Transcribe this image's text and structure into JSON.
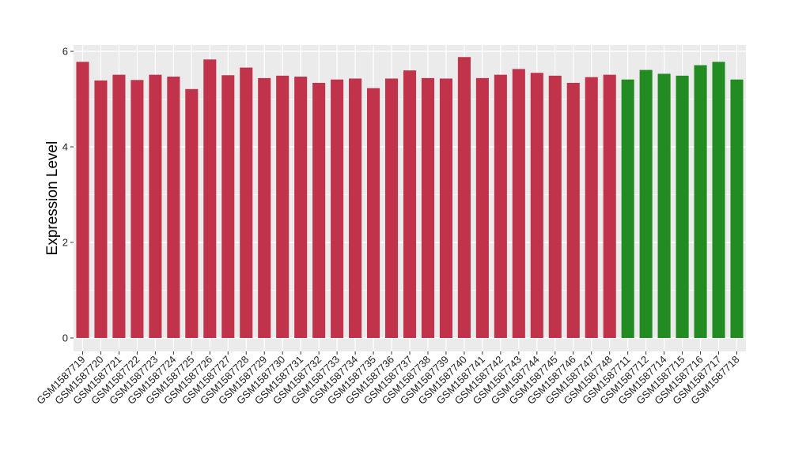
{
  "chart_data": {
    "type": "bar",
    "title": "",
    "xlabel": "",
    "ylabel": "Expression Level",
    "ylim": [
      0,
      6.15
    ],
    "yticks": [
      0,
      2,
      4,
      6
    ],
    "grid": true,
    "colors": {
      "group_a": "#c0334b",
      "group_b": "#228b22",
      "panel_bg": "#ebebeb",
      "grid": "#ffffff"
    },
    "categories": [
      "GSM1587719",
      "GSM1587720",
      "GSM1587721",
      "GSM1587722",
      "GSM1587723",
      "GSM1587724",
      "GSM1587725",
      "GSM1587726",
      "GSM1587727",
      "GSM1587728",
      "GSM1587729",
      "GSM1587730",
      "GSM1587731",
      "GSM1587732",
      "GSM1587733",
      "GSM1587734",
      "GSM1587735",
      "GSM1587736",
      "GSM1587737",
      "GSM1587738",
      "GSM1587739",
      "GSM1587740",
      "GSM1587741",
      "GSM1587742",
      "GSM1587743",
      "GSM1587744",
      "GSM1587745",
      "GSM1587746",
      "GSM1587747",
      "GSM1587748",
      "GSM1587711",
      "GSM1587712",
      "GSM1587714",
      "GSM1587715",
      "GSM1587716",
      "GSM1587717",
      "GSM1587718"
    ],
    "values": [
      5.78,
      5.39,
      5.51,
      5.4,
      5.51,
      5.47,
      5.21,
      5.83,
      5.5,
      5.66,
      5.44,
      5.49,
      5.47,
      5.34,
      5.41,
      5.43,
      5.23,
      5.43,
      5.6,
      5.44,
      5.43,
      5.88,
      5.44,
      5.51,
      5.63,
      5.55,
      5.49,
      5.34,
      5.46,
      5.51,
      5.41,
      5.61,
      5.53,
      5.49,
      5.71,
      5.78,
      5.41
    ],
    "groups": [
      "a",
      "a",
      "a",
      "a",
      "a",
      "a",
      "a",
      "a",
      "a",
      "a",
      "a",
      "a",
      "a",
      "a",
      "a",
      "a",
      "a",
      "a",
      "a",
      "a",
      "a",
      "a",
      "a",
      "a",
      "a",
      "a",
      "a",
      "a",
      "a",
      "a",
      "b",
      "b",
      "b",
      "b",
      "b",
      "b",
      "b"
    ]
  }
}
